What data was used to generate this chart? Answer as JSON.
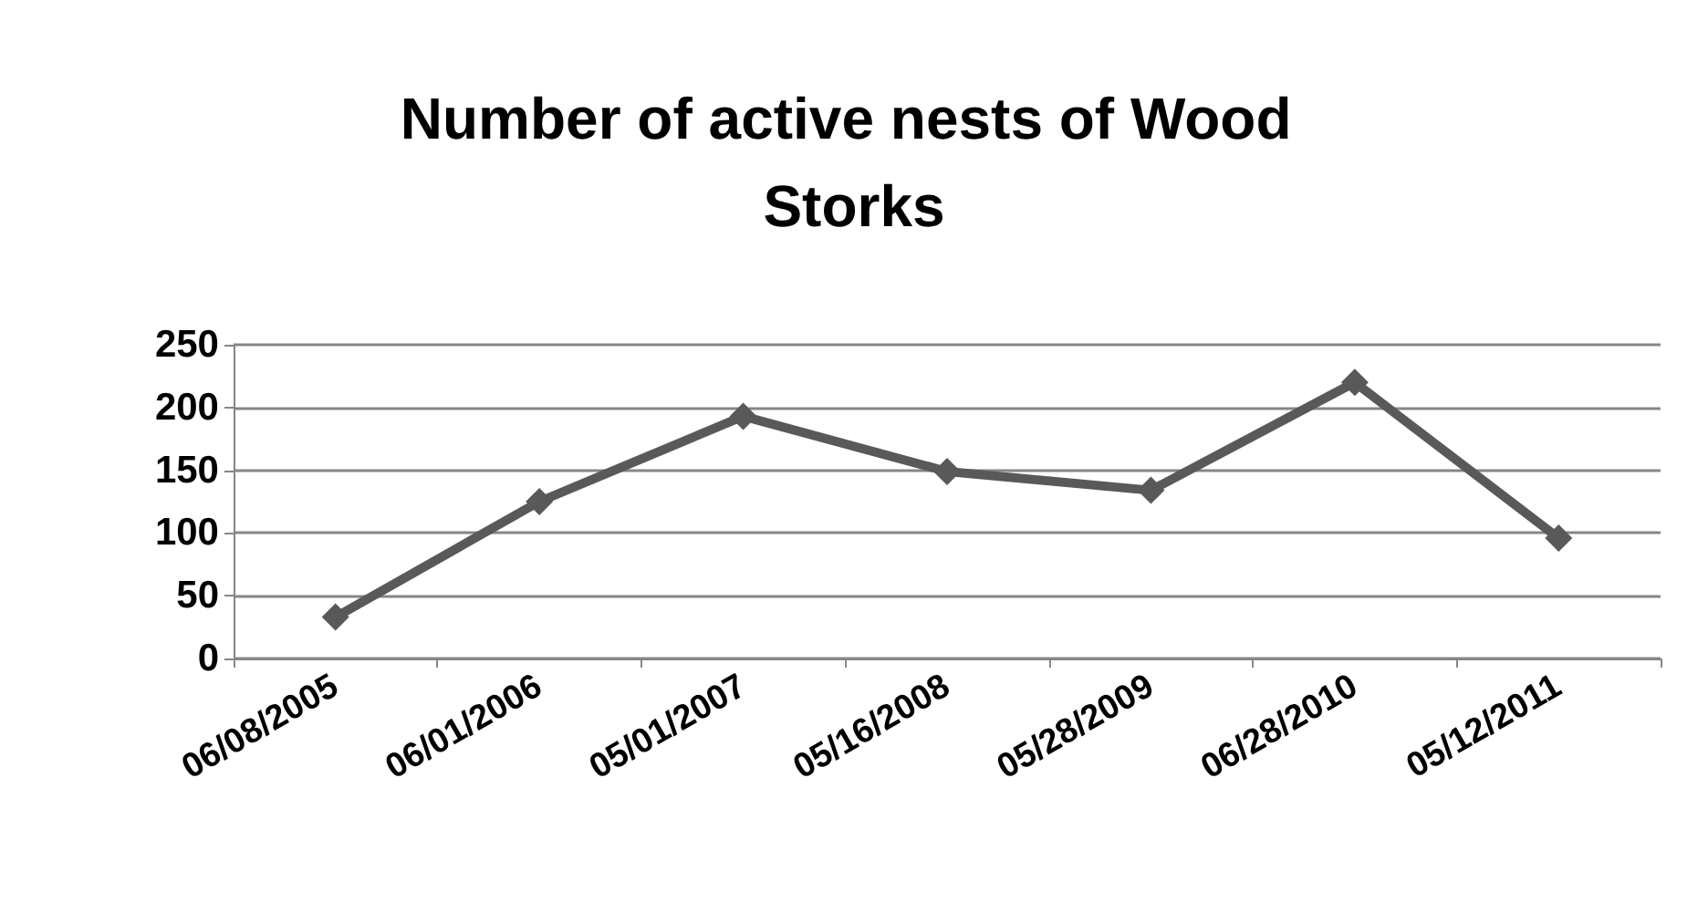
{
  "chart_data": {
    "type": "line",
    "title": "Number of active nests of Wood Storks",
    "categories": [
      "06/08/2005",
      "06/01/2006",
      "05/01/2007",
      "05/16/2008",
      "05/28/2009",
      "06/28/2010",
      "05/12/2011"
    ],
    "series": [
      {
        "color": "#595959",
        "values": [
          33,
          125,
          193,
          149,
          134,
          220,
          96
        ]
      }
    ],
    "ylim": [
      0,
      250
    ],
    "yticks": [
      0,
      50,
      100,
      150,
      200,
      250
    ],
    "grid": "y",
    "marker": "diamond",
    "line_style": "solid"
  }
}
